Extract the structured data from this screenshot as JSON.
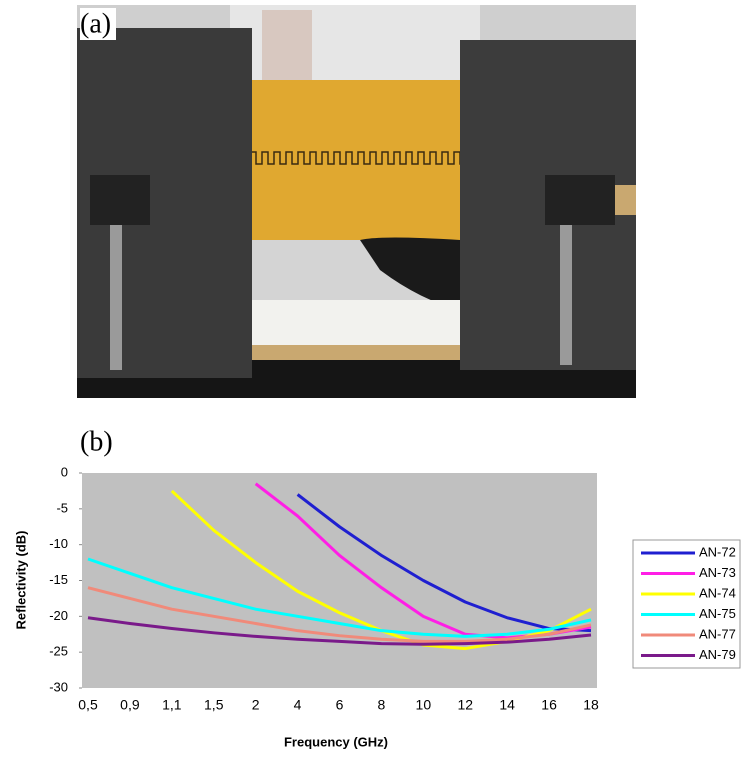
{
  "panel_a": {
    "label": "(a)"
  },
  "chart_data": {
    "type": "line",
    "label": "(b)",
    "x_label": "Frequency (GHz)",
    "y_label": "Reflectivity (dB)",
    "categories": [
      "0,5",
      "0,9",
      "1,1",
      "1,5",
      "2",
      "4",
      "6",
      "8",
      "10",
      "12",
      "14",
      "16",
      "18"
    ],
    "series": [
      {
        "name": "AN-72",
        "color": "#1f1fd0",
        "values": [
          null,
          null,
          null,
          null,
          null,
          -3,
          -7.5,
          -11.5,
          -15,
          -18,
          -20.2,
          -21.7,
          -22
        ]
      },
      {
        "name": "AN-73",
        "color": "#ff1ee6",
        "values": [
          null,
          null,
          null,
          null,
          -1.5,
          -6,
          -11.5,
          -16,
          -20,
          -22.5,
          -23,
          -22.5,
          -21.5
        ]
      },
      {
        "name": "AN-74",
        "color": "#ffff00",
        "values": [
          null,
          null,
          -2.5,
          -8,
          -12.5,
          -16.5,
          -19.5,
          -22,
          -24,
          -24.5,
          -23.5,
          -22,
          -19
        ]
      },
      {
        "name": "AN-75",
        "color": "#00ffff",
        "values": [
          -12,
          -14,
          -16,
          -17.5,
          -19,
          -20,
          -21,
          -22,
          -22.5,
          -22.8,
          -22.5,
          -21.8,
          -20.5
        ]
      },
      {
        "name": "AN-77",
        "color": "#f08a7a",
        "values": [
          -16,
          -17.5,
          -19,
          -20,
          -21,
          -22,
          -22.7,
          -23.2,
          -23.5,
          -23.5,
          -23.2,
          -22.5,
          -21.2
        ]
      },
      {
        "name": "AN-79",
        "color": "#7a1a8a",
        "values": [
          -20.2,
          -21,
          -21.7,
          -22.3,
          -22.8,
          -23.2,
          -23.5,
          -23.8,
          -23.9,
          -23.8,
          -23.6,
          -23.2,
          -22.6
        ]
      }
    ],
    "ylim": [
      -30,
      0
    ],
    "yticks": [
      0,
      -5,
      -10,
      -15,
      -20,
      -25,
      -30
    ]
  }
}
